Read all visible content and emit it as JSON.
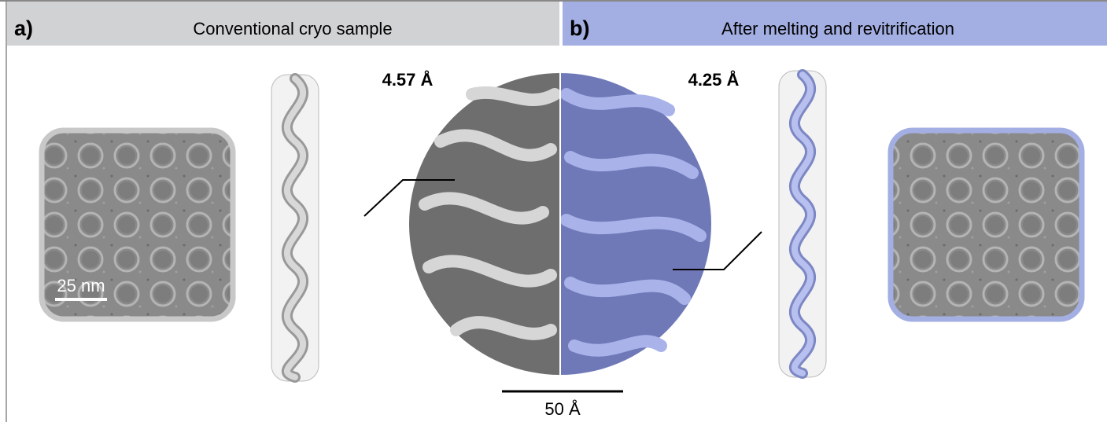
{
  "panels": [
    {
      "label": "a)",
      "title": "Conventional cryo sample",
      "resolution": "4.57 Å",
      "micrograph_scale": "25 nm"
    },
    {
      "label": "b)",
      "title": "After melting and revitrification",
      "resolution": "4.25 Å"
    }
  ],
  "map_scale": "50 Å"
}
